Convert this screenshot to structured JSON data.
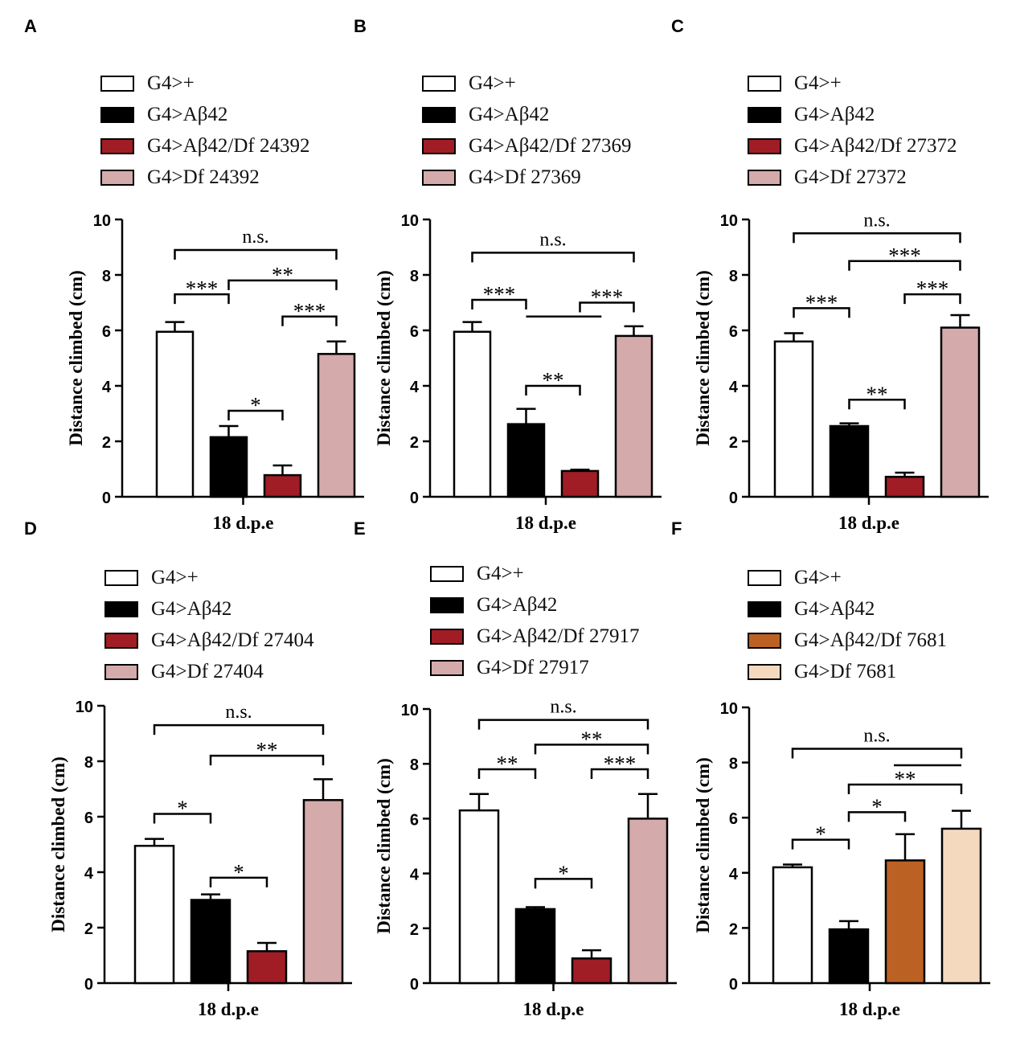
{
  "figure": {
    "panels": [
      {
        "letter": "A",
        "legend": [
          "G4>+",
          "G4>Aβ42",
          "G4>Aβ42/Df 24392",
          "G4>Df 24392"
        ]
      },
      {
        "letter": "B",
        "legend": [
          "G4>+",
          "G4>Aβ42",
          "G4>Aβ42/Df 27369",
          "G4>Df 27369"
        ]
      },
      {
        "letter": "C",
        "legend": [
          "G4>+",
          "G4>Aβ42",
          "G4>Aβ42/Df 27372",
          "G4>Df 27372"
        ]
      },
      {
        "letter": "D",
        "legend": [
          "G4>+",
          "G4>Aβ42",
          "G4>Aβ42/Df 27404",
          "G4>Df 27404"
        ]
      },
      {
        "letter": "E",
        "legend": [
          "G4>+",
          "G4>Aβ42",
          "G4>Aβ42/Df 27917",
          "G4>Df 27917"
        ]
      },
      {
        "letter": "F",
        "legend": [
          "G4>+",
          "G4>Aβ42",
          "G4>Aβ42/Df 7681",
          "G4>Df 7681"
        ]
      }
    ]
  },
  "chart_data": [
    {
      "panel": "A",
      "type": "bar",
      "xlabel": "18 d.p.e",
      "ylabel": "Distance climbed (cm)",
      "ylim": [
        0,
        10
      ],
      "yticks": [
        "0",
        "2",
        "4",
        "6",
        "8",
        "10"
      ],
      "categories": [
        "G4>+",
        "G4>Aβ42",
        "G4>Aβ42/Df 24392",
        "G4>Df 24392"
      ],
      "values": [
        5.95,
        2.15,
        0.78,
        5.15
      ],
      "errors": [
        0.35,
        0.4,
        0.35,
        0.45
      ],
      "colors": [
        "#ffffff",
        "#000000",
        "#a01d26",
        "#d4aaab"
      ],
      "significance": [
        {
          "from": 0,
          "to": 1,
          "label": "***",
          "y": 7.3
        },
        {
          "from": 1,
          "to": 2,
          "label": "*",
          "y": 3.1
        },
        {
          "from": 2,
          "to": 3,
          "label": "***",
          "y": 6.5
        },
        {
          "from": 1,
          "to": 3,
          "label": "**",
          "y": 7.8
        },
        {
          "from": 0,
          "to": 3,
          "label": "n.s.",
          "y": 8.9
        }
      ]
    },
    {
      "panel": "B",
      "type": "bar",
      "xlabel": "18 d.p.e",
      "ylabel": "Distance climbed (cm)",
      "ylim": [
        0,
        10
      ],
      "yticks": [
        "0",
        "2",
        "4",
        "6",
        "8",
        "10"
      ],
      "categories": [
        "G4>+",
        "G4>Aβ42",
        "G4>Aβ42/Df 27369",
        "G4>Df 27369"
      ],
      "values": [
        5.95,
        2.62,
        0.93,
        5.8
      ],
      "errors": [
        0.35,
        0.55,
        0.05,
        0.35
      ],
      "colors": [
        "#ffffff",
        "#000000",
        "#a01d26",
        "#d4aaab"
      ],
      "significance": [
        {
          "from": 0,
          "to": 1,
          "label": "***",
          "y": 7.1
        },
        {
          "from": 1,
          "to": 2,
          "label": "**",
          "y": 4.0
        },
        {
          "from": 2,
          "to": 3,
          "label": "***",
          "y": 7.0
        },
        {
          "from": 0,
          "to": 3,
          "label": "n.s.",
          "y": 8.8
        }
      ],
      "extra_lines": [
        {
          "from": 1,
          "to": 2.4,
          "y": 6.5
        }
      ]
    },
    {
      "panel": "C",
      "type": "bar",
      "xlabel": "18 d.p.e",
      "ylabel": "Distance climbed (cm)",
      "ylim": [
        0,
        10
      ],
      "yticks": [
        "0",
        "2",
        "4",
        "6",
        "8",
        "10"
      ],
      "categories": [
        "G4>+",
        "G4>Aβ42",
        "G4>Aβ42/Df 27372",
        "G4>Df 27372"
      ],
      "values": [
        5.6,
        2.55,
        0.72,
        6.1
      ],
      "errors": [
        0.3,
        0.1,
        0.15,
        0.45
      ],
      "colors": [
        "#ffffff",
        "#000000",
        "#a01d26",
        "#d4aaab"
      ],
      "significance": [
        {
          "from": 0,
          "to": 1,
          "label": "***",
          "y": 6.8
        },
        {
          "from": 1,
          "to": 2,
          "label": "**",
          "y": 3.5
        },
        {
          "from": 2,
          "to": 3,
          "label": "***",
          "y": 7.3
        },
        {
          "from": 1,
          "to": 3,
          "label": "***",
          "y": 8.5
        },
        {
          "from": 0,
          "to": 3,
          "label": "n.s.",
          "y": 9.5
        }
      ]
    },
    {
      "panel": "D",
      "type": "bar",
      "xlabel": "18 d.p.e",
      "ylabel": "Distance climbed (cm)",
      "ylim": [
        0,
        10
      ],
      "yticks": [
        "0",
        "2",
        "4",
        "6",
        "8",
        "10"
      ],
      "categories": [
        "G4>+",
        "G4>Aβ42",
        "G4>Aβ42/Df 27404",
        "G4>Df 27404"
      ],
      "values": [
        4.95,
        3.0,
        1.15,
        6.6
      ],
      "errors": [
        0.25,
        0.2,
        0.3,
        0.75
      ],
      "colors": [
        "#ffffff",
        "#000000",
        "#a01d26",
        "#d4aaab"
      ],
      "significance": [
        {
          "from": 0,
          "to": 1,
          "label": "*",
          "y": 6.1
        },
        {
          "from": 1,
          "to": 2,
          "label": "*",
          "y": 3.8
        },
        {
          "from": 1,
          "to": 3,
          "label": "**",
          "y": 8.2
        },
        {
          "from": 0,
          "to": 3,
          "label": "n.s.",
          "y": 9.3
        }
      ]
    },
    {
      "panel": "E",
      "type": "bar",
      "xlabel": "18 d.p.e",
      "ylabel": "Distance climbed (cm)",
      "ylim": [
        0,
        10
      ],
      "yticks": [
        "0",
        "2",
        "4",
        "6",
        "8",
        "10"
      ],
      "categories": [
        "G4>+",
        "G4>Aβ42",
        "G4>Aβ42/Df 27917",
        "G4>Df 27917"
      ],
      "values": [
        6.3,
        2.7,
        0.9,
        6.0
      ],
      "errors": [
        0.6,
        0.07,
        0.3,
        0.9
      ],
      "colors": [
        "#ffffff",
        "#000000",
        "#a01d26",
        "#d4aaab"
      ],
      "significance": [
        {
          "from": 0,
          "to": 1,
          "label": "**",
          "y": 7.8
        },
        {
          "from": 1,
          "to": 2,
          "label": "*",
          "y": 3.8
        },
        {
          "from": 2,
          "to": 3,
          "label": "***",
          "y": 7.8
        },
        {
          "from": 1,
          "to": 3,
          "label": "**",
          "y": 8.7
        },
        {
          "from": 0,
          "to": 3,
          "label": "n.s.",
          "y": 9.6
        }
      ]
    },
    {
      "panel": "F",
      "type": "bar",
      "xlabel": "18 d.p.e",
      "ylabel": "Distance climbed (cm)",
      "ylim": [
        0,
        10
      ],
      "yticks": [
        "0",
        "2",
        "4",
        "6",
        "8",
        "10"
      ],
      "categories": [
        "G4>+",
        "G4>Aβ42",
        "G4>Aβ42/Df 7681",
        "G4>Df 7681"
      ],
      "values": [
        4.2,
        1.95,
        4.45,
        5.6
      ],
      "errors": [
        0.1,
        0.3,
        0.95,
        0.65
      ],
      "colors": [
        "#ffffff",
        "#000000",
        "#bb6123",
        "#f5d9bf"
      ],
      "significance": [
        {
          "from": 0,
          "to": 1,
          "label": "*",
          "y": 5.2
        },
        {
          "from": 1,
          "to": 2,
          "label": "*",
          "y": 6.2
        },
        {
          "from": 1,
          "to": 3,
          "label": "**",
          "y": 7.2
        },
        {
          "from": 0,
          "to": 3,
          "label": "n.s.",
          "y": 8.5
        }
      ],
      "extra_lines": [
        {
          "from": 1.8,
          "to": 3,
          "y": 7.9
        }
      ]
    }
  ]
}
